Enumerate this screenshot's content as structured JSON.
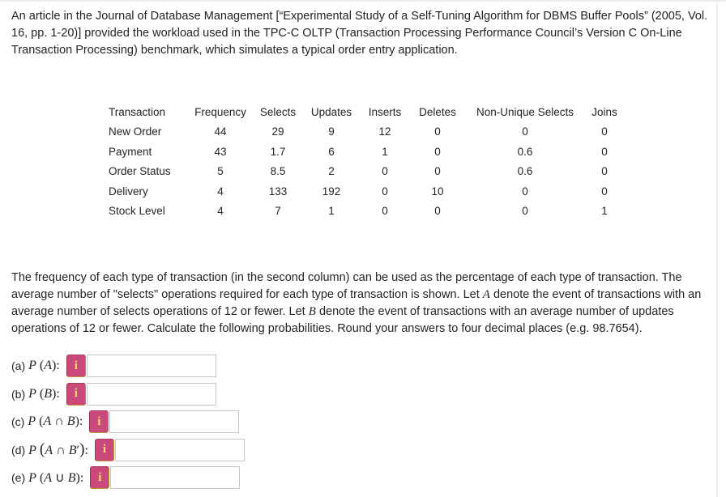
{
  "intro": {
    "text": "An article in the Journal of Database Management [“Experimental Study of a Self-Tuning Algorithm for DBMS Buffer Pools” (2005, Vol. 16, pp. 1-20)] provided the workload used in the TPC-C OLTP (Transaction Processing Performance Council’s Version C On-Line Transaction Processing) benchmark, which simulates a typical order entry application."
  },
  "workload_table": {
    "headers": [
      "Transaction",
      "Frequency",
      "Selects",
      "Updates",
      "Inserts",
      "Deletes",
      "Non-Unique Selects",
      "Joins"
    ],
    "rows": [
      {
        "transaction": "New Order",
        "values": [
          "44",
          "29",
          "9",
          "12",
          "0",
          "0",
          "0"
        ]
      },
      {
        "transaction": "Payment",
        "values": [
          "43",
          "1.7",
          "6",
          "1",
          "0",
          "0.6",
          "0"
        ]
      },
      {
        "transaction": "Order Status",
        "values": [
          "5",
          "8.5",
          "2",
          "0",
          "0",
          "0.6",
          "0"
        ]
      },
      {
        "transaction": "Delivery",
        "values": [
          "4",
          "133",
          "192",
          "0",
          "10",
          "0",
          "0"
        ]
      },
      {
        "transaction": "Stock Level",
        "values": [
          "4",
          "7",
          "1",
          "0",
          "0",
          "0",
          "1"
        ]
      }
    ]
  },
  "instructions": {
    "segments": [
      {
        "t": "The frequency of each type of transaction (in the second column) can be used as the percentage of each type of transaction. The average number of \"selects\" operations required for each type of transaction is shown. Let "
      },
      {
        "t": "A",
        "i": true
      },
      {
        "t": " denote the event of transactions with an average number of selects operations of 12 or fewer. Let "
      },
      {
        "t": "B",
        "i": true
      },
      {
        "t": " denote the event of transactions with an average number of updates operations of 12 or fewer. Calculate the following probabilities. Round your answers to four decimal places (e.g. 98.7654)."
      }
    ]
  },
  "questions": [
    {
      "id": "a",
      "label": "(a)",
      "value": "",
      "expr": [
        {
          "t": "P",
          "i": true
        },
        {
          "t": " ("
        },
        {
          "t": "A",
          "i": true
        },
        {
          "t": "):"
        }
      ]
    },
    {
      "id": "b",
      "label": "(b)",
      "value": "",
      "expr": [
        {
          "t": "P",
          "i": true
        },
        {
          "t": " ("
        },
        {
          "t": "B",
          "i": true
        },
        {
          "t": "):"
        }
      ]
    },
    {
      "id": "c",
      "label": "(c)",
      "value": "",
      "expr": [
        {
          "t": "P",
          "i": true
        },
        {
          "t": " ("
        },
        {
          "t": "A",
          "i": true
        },
        {
          "t": " ∩ "
        },
        {
          "t": "B",
          "i": true
        },
        {
          "t": "):"
        }
      ]
    },
    {
      "id": "d",
      "label": "(d)",
      "value": "",
      "expr": [
        {
          "t": "P",
          "i": true
        },
        {
          "t": " "
        },
        {
          "t": "(",
          "big": true
        },
        {
          "t": "A",
          "i": true
        },
        {
          "t": " ∩ "
        },
        {
          "t": "B",
          "i": true
        },
        {
          "t": "′"
        },
        {
          "t": ")",
          "big": true
        },
        {
          "t": ":"
        }
      ]
    },
    {
      "id": "e",
      "label": "(e)",
      "value": "",
      "expr": [
        {
          "t": "P",
          "i": true
        },
        {
          "t": " ("
        },
        {
          "t": "A",
          "i": true
        },
        {
          "t": " ∪ "
        },
        {
          "t": "B",
          "i": true
        },
        {
          "t": "):"
        }
      ]
    }
  ],
  "ui": {
    "info_icon_glyph": "i",
    "colors": {
      "info_bg": "#c9497a",
      "info_border": "#bd9136",
      "info_glyph": "#f9d976",
      "input_border": "#c6c6c6",
      "text": "#242424",
      "divider": "#ececec"
    }
  }
}
